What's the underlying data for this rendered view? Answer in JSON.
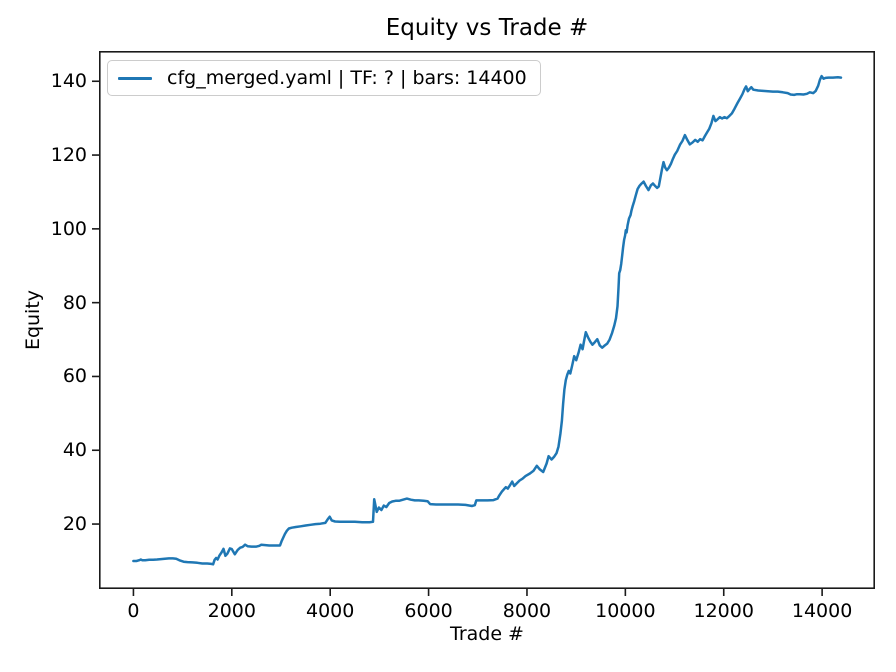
{
  "chart_data": {
    "type": "line",
    "title": "Equity vs Trade #",
    "xlabel": "Trade #",
    "ylabel": "Equity",
    "xlim": [
      -700,
      15075
    ],
    "ylim": [
      2.4,
      148.2
    ],
    "x_ticks": [
      0,
      2000,
      4000,
      6000,
      8000,
      10000,
      12000,
      14000
    ],
    "y_ticks": [
      20,
      40,
      60,
      80,
      100,
      120,
      140
    ],
    "grid": false,
    "legend": {
      "position": "upper left",
      "entries": [
        {
          "label": "cfg_merged.yaml | TF: ? | bars: 14400",
          "color": "#1f77b4"
        }
      ]
    },
    "series": [
      {
        "name": "cfg_merged.yaml | TF: ? | bars: 14400",
        "color": "#1f77b4",
        "points": [
          [
            0,
            10.0
          ],
          [
            60,
            10.0
          ],
          [
            120,
            10.2
          ],
          [
            150,
            10.4
          ],
          [
            180,
            10.2
          ],
          [
            240,
            10.2
          ],
          [
            320,
            10.3
          ],
          [
            400,
            10.3
          ],
          [
            480,
            10.4
          ],
          [
            560,
            10.5
          ],
          [
            640,
            10.6
          ],
          [
            720,
            10.7
          ],
          [
            800,
            10.7
          ],
          [
            870,
            10.6
          ],
          [
            950,
            10.1
          ],
          [
            1020,
            9.8
          ],
          [
            1100,
            9.7
          ],
          [
            1200,
            9.6
          ],
          [
            1300,
            9.5
          ],
          [
            1400,
            9.3
          ],
          [
            1500,
            9.3
          ],
          [
            1580,
            9.2
          ],
          [
            1620,
            9.1
          ],
          [
            1650,
            10.3
          ],
          [
            1680,
            10.8
          ],
          [
            1710,
            10.4
          ],
          [
            1750,
            11.5
          ],
          [
            1790,
            12.3
          ],
          [
            1830,
            13.3
          ],
          [
            1870,
            11.4
          ],
          [
            1910,
            12.0
          ],
          [
            1960,
            13.4
          ],
          [
            2000,
            13.2
          ],
          [
            2060,
            11.8
          ],
          [
            2120,
            13.0
          ],
          [
            2170,
            13.6
          ],
          [
            2220,
            13.8
          ],
          [
            2270,
            14.4
          ],
          [
            2320,
            14.0
          ],
          [
            2400,
            13.9
          ],
          [
            2500,
            13.9
          ],
          [
            2560,
            14.1
          ],
          [
            2600,
            14.4
          ],
          [
            2680,
            14.3
          ],
          [
            2760,
            14.2
          ],
          [
            2860,
            14.2
          ],
          [
            2980,
            14.2
          ],
          [
            3010,
            15.3
          ],
          [
            3040,
            16.2
          ],
          [
            3080,
            17.3
          ],
          [
            3120,
            18.2
          ],
          [
            3160,
            18.8
          ],
          [
            3220,
            19.0
          ],
          [
            3300,
            19.2
          ],
          [
            3400,
            19.4
          ],
          [
            3500,
            19.6
          ],
          [
            3600,
            19.8
          ],
          [
            3700,
            20.0
          ],
          [
            3800,
            20.1
          ],
          [
            3900,
            20.3
          ],
          [
            3950,
            21.3
          ],
          [
            3990,
            22.0
          ],
          [
            4030,
            21.0
          ],
          [
            4100,
            20.7
          ],
          [
            4200,
            20.6
          ],
          [
            4350,
            20.6
          ],
          [
            4500,
            20.6
          ],
          [
            4650,
            20.5
          ],
          [
            4800,
            20.5
          ],
          [
            4870,
            20.6
          ],
          [
            4895,
            26.7
          ],
          [
            4920,
            25.0
          ],
          [
            4945,
            23.3
          ],
          [
            4990,
            24.5
          ],
          [
            5040,
            23.8
          ],
          [
            5090,
            25.0
          ],
          [
            5140,
            24.6
          ],
          [
            5200,
            25.7
          ],
          [
            5260,
            26.1
          ],
          [
            5330,
            26.3
          ],
          [
            5400,
            26.3
          ],
          [
            5480,
            26.6
          ],
          [
            5560,
            26.9
          ],
          [
            5640,
            26.6
          ],
          [
            5720,
            26.4
          ],
          [
            5800,
            26.4
          ],
          [
            5900,
            26.3
          ],
          [
            5980,
            26.2
          ],
          [
            6030,
            25.4
          ],
          [
            6150,
            25.3
          ],
          [
            6300,
            25.3
          ],
          [
            6450,
            25.3
          ],
          [
            6600,
            25.3
          ],
          [
            6750,
            25.2
          ],
          [
            6880,
            24.9
          ],
          [
            6940,
            25.1
          ],
          [
            6970,
            26.4
          ],
          [
            7080,
            26.4
          ],
          [
            7200,
            26.4
          ],
          [
            7320,
            26.5
          ],
          [
            7400,
            26.9
          ],
          [
            7440,
            27.8
          ],
          [
            7490,
            28.8
          ],
          [
            7530,
            29.4
          ],
          [
            7570,
            30.0
          ],
          [
            7610,
            29.6
          ],
          [
            7660,
            30.6
          ],
          [
            7700,
            31.5
          ],
          [
            7740,
            30.3
          ],
          [
            7790,
            31.0
          ],
          [
            7850,
            31.8
          ],
          [
            7910,
            32.3
          ],
          [
            7970,
            33.0
          ],
          [
            8060,
            33.7
          ],
          [
            8130,
            34.4
          ],
          [
            8200,
            35.8
          ],
          [
            8260,
            34.8
          ],
          [
            8330,
            34.1
          ],
          [
            8400,
            36.4
          ],
          [
            8440,
            38.4
          ],
          [
            8500,
            37.5
          ],
          [
            8550,
            38.2
          ],
          [
            8600,
            39.2
          ],
          [
            8640,
            41.0
          ],
          [
            8680,
            44.5
          ],
          [
            8710,
            48.0
          ],
          [
            8735,
            52.5
          ],
          [
            8760,
            56.5
          ],
          [
            8790,
            59.0
          ],
          [
            8820,
            60.5
          ],
          [
            8850,
            61.5
          ],
          [
            8880,
            60.8
          ],
          [
            8920,
            63.0
          ],
          [
            8960,
            65.5
          ],
          [
            9000,
            64.4
          ],
          [
            9050,
            66.5
          ],
          [
            9090,
            68.6
          ],
          [
            9130,
            67.4
          ],
          [
            9160,
            69.5
          ],
          [
            9195,
            72.0
          ],
          [
            9240,
            70.6
          ],
          [
            9290,
            69.4
          ],
          [
            9330,
            68.6
          ],
          [
            9380,
            69.3
          ],
          [
            9430,
            70.1
          ],
          [
            9480,
            68.4
          ],
          [
            9530,
            67.8
          ],
          [
            9580,
            68.4
          ],
          [
            9630,
            68.9
          ],
          [
            9680,
            70.0
          ],
          [
            9730,
            71.8
          ],
          [
            9775,
            73.8
          ],
          [
            9810,
            75.8
          ],
          [
            9840,
            79.0
          ],
          [
            9860,
            84.0
          ],
          [
            9875,
            88.0
          ],
          [
            9895,
            88.8
          ],
          [
            9915,
            90.5
          ],
          [
            9935,
            92.8
          ],
          [
            9955,
            95.0
          ],
          [
            9975,
            97.0
          ],
          [
            9995,
            98.2
          ],
          [
            10010,
            99.6
          ],
          [
            10025,
            99.0
          ],
          [
            10045,
            101.0
          ],
          [
            10075,
            102.8
          ],
          [
            10105,
            103.7
          ],
          [
            10125,
            105.0
          ],
          [
            10150,
            106.2
          ],
          [
            10180,
            107.5
          ],
          [
            10215,
            109.2
          ],
          [
            10250,
            110.8
          ],
          [
            10290,
            111.7
          ],
          [
            10330,
            112.3
          ],
          [
            10370,
            112.8
          ],
          [
            10420,
            111.6
          ],
          [
            10470,
            110.5
          ],
          [
            10520,
            111.8
          ],
          [
            10560,
            112.3
          ],
          [
            10600,
            111.7
          ],
          [
            10645,
            111.1
          ],
          [
            10680,
            111.5
          ],
          [
            10715,
            114.0
          ],
          [
            10745,
            116.2
          ],
          [
            10775,
            118.1
          ],
          [
            10810,
            116.6
          ],
          [
            10845,
            115.9
          ],
          [
            10885,
            116.6
          ],
          [
            10925,
            117.6
          ],
          [
            10965,
            118.9
          ],
          [
            11005,
            120.1
          ],
          [
            11055,
            121.1
          ],
          [
            11110,
            122.8
          ],
          [
            11160,
            123.8
          ],
          [
            11210,
            125.4
          ],
          [
            11260,
            124.1
          ],
          [
            11310,
            122.9
          ],
          [
            11365,
            123.4
          ],
          [
            11420,
            124.1
          ],
          [
            11470,
            123.6
          ],
          [
            11520,
            124.3
          ],
          [
            11570,
            124.0
          ],
          [
            11620,
            125.2
          ],
          [
            11660,
            126.1
          ],
          [
            11705,
            127.1
          ],
          [
            11750,
            128.6
          ],
          [
            11790,
            130.6
          ],
          [
            11830,
            129.2
          ],
          [
            11875,
            129.7
          ],
          [
            11920,
            130.3
          ],
          [
            11965,
            129.9
          ],
          [
            12015,
            130.3
          ],
          [
            12065,
            130.0
          ],
          [
            12115,
            130.6
          ],
          [
            12165,
            131.3
          ],
          [
            12220,
            132.6
          ],
          [
            12280,
            134.1
          ],
          [
            12330,
            135.3
          ],
          [
            12380,
            136.5
          ],
          [
            12425,
            137.9
          ],
          [
            12455,
            138.6
          ],
          [
            12490,
            137.3
          ],
          [
            12525,
            137.9
          ],
          [
            12560,
            138.4
          ],
          [
            12600,
            137.7
          ],
          [
            12700,
            137.5
          ],
          [
            12800,
            137.4
          ],
          [
            12900,
            137.3
          ],
          [
            13000,
            137.2
          ],
          [
            13100,
            137.2
          ],
          [
            13200,
            137.0
          ],
          [
            13300,
            136.8
          ],
          [
            13360,
            136.4
          ],
          [
            13430,
            136.3
          ],
          [
            13490,
            136.5
          ],
          [
            13550,
            136.5
          ],
          [
            13620,
            136.4
          ],
          [
            13690,
            136.6
          ],
          [
            13750,
            137.0
          ],
          [
            13820,
            136.8
          ],
          [
            13870,
            137.4
          ],
          [
            13920,
            138.8
          ],
          [
            13955,
            140.4
          ],
          [
            13990,
            141.4
          ],
          [
            14030,
            140.7
          ],
          [
            14070,
            140.9
          ],
          [
            14130,
            141.0
          ],
          [
            14220,
            141.0
          ],
          [
            14320,
            141.1
          ],
          [
            14383,
            141.0
          ]
        ]
      }
    ]
  },
  "colors": {
    "line": "#1f77b4",
    "spine": "#1a1a1a",
    "legend_border": "#cccccc",
    "text": "#000000"
  }
}
